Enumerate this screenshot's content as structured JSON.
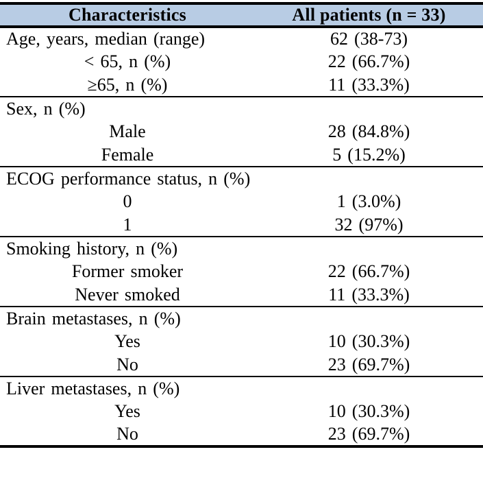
{
  "colors": {
    "header_bg": "#b8cce4",
    "line": "#000000",
    "text": "#000000"
  },
  "table": {
    "header": {
      "col1": "Characteristics",
      "col2": "All patients (n = 33)"
    },
    "sections": [
      {
        "rows": [
          {
            "label": "Age, years, median (range)",
            "value": "62 (38-73)",
            "indent": false
          },
          {
            "label": "< 65, n (%)",
            "value": "22 (66.7%)",
            "indent": true
          },
          {
            "label": "≥65, n (%)",
            "value": "11 (33.3%)",
            "indent": true
          }
        ]
      },
      {
        "rows": [
          {
            "label": "Sex, n (%)",
            "value": "",
            "indent": false
          },
          {
            "label": "Male",
            "value": "28 (84.8%)",
            "indent": true
          },
          {
            "label": "Female",
            "value": "5 (15.2%)",
            "indent": true
          }
        ]
      },
      {
        "rows": [
          {
            "label": "ECOG performance status, n (%)",
            "value": "",
            "indent": false
          },
          {
            "label": "0",
            "value": "1 (3.0%)",
            "indent": true
          },
          {
            "label": "1",
            "value": "32 (97%)",
            "indent": true
          }
        ]
      },
      {
        "rows": [
          {
            "label": "Smoking history, n (%)",
            "value": "",
            "indent": false
          },
          {
            "label": "Former smoker",
            "value": "22 (66.7%)",
            "indent": true
          },
          {
            "label": "Never smoked",
            "value": "11 (33.3%)",
            "indent": true
          }
        ]
      },
      {
        "rows": [
          {
            "label": "Brain metastases, n (%)",
            "value": "",
            "indent": false
          },
          {
            "label": "Yes",
            "value": "10 (30.3%)",
            "indent": true
          },
          {
            "label": "No",
            "value": "23 (69.7%)",
            "indent": true
          }
        ]
      },
      {
        "rows": [
          {
            "label": "Liver metastases, n (%)",
            "value": "",
            "indent": false
          },
          {
            "label": "Yes",
            "value": "10 (30.3%)",
            "indent": true
          },
          {
            "label": "No",
            "value": "23 (69.7%)",
            "indent": true
          }
        ]
      }
    ]
  }
}
